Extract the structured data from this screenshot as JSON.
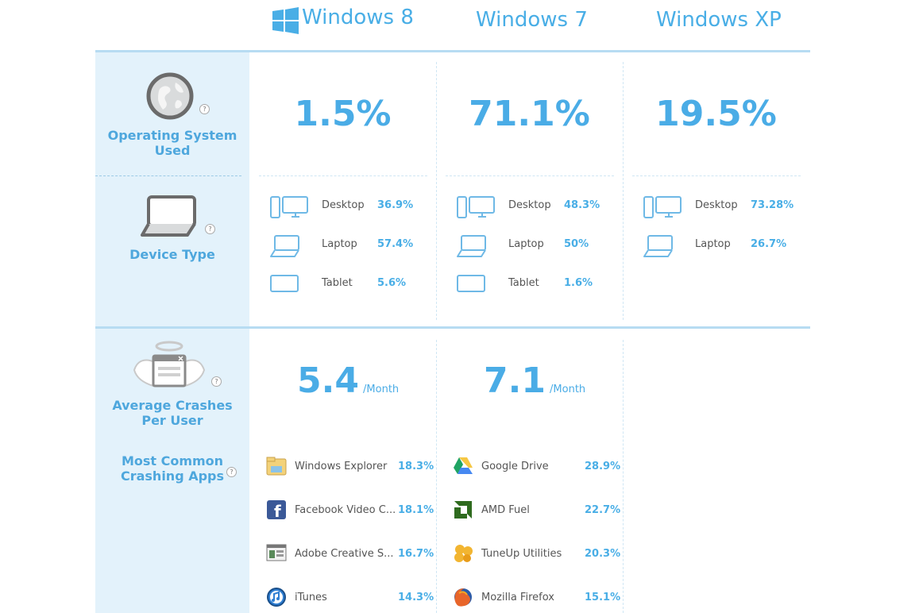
{
  "chart_data": {
    "type": "table",
    "columns": [
      {
        "name": "Windows 8"
      },
      {
        "name": "Windows 7"
      },
      {
        "name": "Windows XP"
      }
    ],
    "rows": {
      "os_used": {
        "label": "Operating System Used",
        "values": [
          "1.5%",
          "71.1%",
          "19.5%"
        ]
      },
      "device_type": {
        "label": "Device Type",
        "windows8": [
          {
            "device": "Desktop",
            "value": "36.9%"
          },
          {
            "device": "Laptop",
            "value": "57.4%"
          },
          {
            "device": "Tablet",
            "value": "5.6%"
          }
        ],
        "windows7": [
          {
            "device": "Desktop",
            "value": "48.3%"
          },
          {
            "device": "Laptop",
            "value": "50%"
          },
          {
            "device": "Tablet",
            "value": "1.6%"
          }
        ],
        "windowsxp": [
          {
            "device": "Desktop",
            "value": "73.28%"
          },
          {
            "device": "Laptop",
            "value": "26.7%"
          }
        ]
      },
      "avg_crashes": {
        "label_line1": "Average Crashes",
        "label_line2": "Per User",
        "windows8": {
          "value": "5.4",
          "unit": "/Month"
        },
        "windows7": {
          "value": "7.1",
          "unit": "/Month"
        }
      },
      "common_apps": {
        "label_line1": "Most Common",
        "label_line2": "Crashing Apps",
        "windows8": [
          {
            "app": "Windows Explorer",
            "value": "18.3%",
            "icon": "folder-icon"
          },
          {
            "app": "Facebook Video C...",
            "value": "18.1%",
            "icon": "facebook-icon"
          },
          {
            "app": "Adobe Creative S...",
            "value": "16.7%",
            "icon": "window-app-icon"
          },
          {
            "app": "iTunes",
            "value": "14.3%",
            "icon": "itunes-icon"
          }
        ],
        "windows7": [
          {
            "app": "Google Drive",
            "value": "28.9%",
            "icon": "google-drive-icon"
          },
          {
            "app": "AMD Fuel",
            "value": "22.7%",
            "icon": "amd-icon"
          },
          {
            "app": "TuneUp Utilities",
            "value": "20.3%",
            "icon": "tuneup-icon"
          },
          {
            "app": "Mozilla Firefox",
            "value": "15.1%",
            "icon": "firefox-icon"
          }
        ]
      }
    }
  },
  "labels": {
    "os_used_line1": "Operating System",
    "os_used_line2": "Used",
    "device_type": "Device Type",
    "help": "?"
  },
  "colors": {
    "accent": "#49aee6",
    "sidebar": "#e3f2fb",
    "divider": "#b7dcf2"
  }
}
